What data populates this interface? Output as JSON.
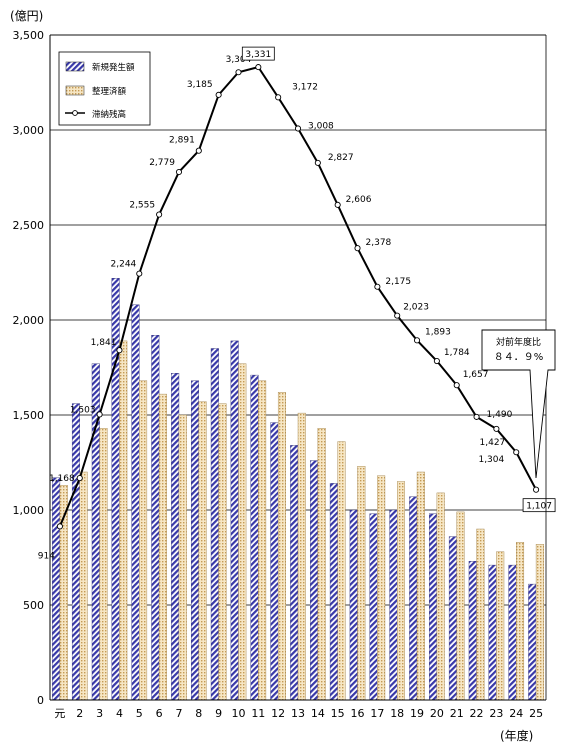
{
  "chart_data": {
    "type": "bar",
    "y_unit": "(億円)",
    "x_unit": "(年度)",
    "categories": [
      "元",
      "2",
      "3",
      "4",
      "5",
      "6",
      "7",
      "8",
      "9",
      "10",
      "11",
      "12",
      "13",
      "14",
      "15",
      "16",
      "17",
      "18",
      "19",
      "20",
      "21",
      "22",
      "23",
      "24",
      "25"
    ],
    "ylim": [
      0,
      3500
    ],
    "yticks": [
      0,
      500,
      1000,
      1500,
      2000,
      2500,
      3000,
      3500
    ],
    "ytick_labels": [
      "0",
      "500",
      "1,000",
      "1,500",
      "2,000",
      "2,500",
      "3,000",
      "3,500"
    ],
    "grid": true,
    "legend_position": "top-left",
    "series": [
      {
        "name": "新規発生額",
        "kind": "bar",
        "color": "#3333aa",
        "values": [
          1170,
          1560,
          1770,
          2220,
          2080,
          1920,
          1720,
          1680,
          1850,
          1890,
          1710,
          1460,
          1340,
          1260,
          1140,
          1000,
          980,
          1000,
          1070,
          980,
          860,
          730,
          710,
          710,
          610
        ]
      },
      {
        "name": "整理済額",
        "kind": "bar",
        "color": "#e8c888",
        "values": [
          1130,
          1200,
          1430,
          1890,
          1680,
          1610,
          1500,
          1570,
          1560,
          1770,
          1680,
          1620,
          1510,
          1430,
          1360,
          1230,
          1180,
          1150,
          1200,
          1090,
          990,
          900,
          780,
          830,
          820
        ]
      },
      {
        "name": "滞納残高",
        "kind": "line",
        "color": "#000000",
        "values": [
          914,
          1168,
          1503,
          1841,
          2244,
          2555,
          2779,
          2891,
          3185,
          3304,
          3331,
          3172,
          3008,
          2827,
          2606,
          2378,
          2175,
          2023,
          1893,
          1784,
          1657,
          1490,
          1427,
          1304,
          1107
        ],
        "labels": [
          "914",
          "1,168",
          "1,503",
          "1,841",
          "2,244",
          "2,555",
          "2,779",
          "2,891",
          "3,185",
          "3,304",
          "3,331",
          "3,172",
          "3,008",
          "2,827",
          "2,606",
          "2,378",
          "2,175",
          "2,023",
          "1,893",
          "1,784",
          "1,657",
          "1,490",
          "1,427",
          "1,304",
          "1,107"
        ]
      }
    ],
    "annotation": {
      "line1": "対前年度比",
      "line2": "８４．９%"
    }
  }
}
